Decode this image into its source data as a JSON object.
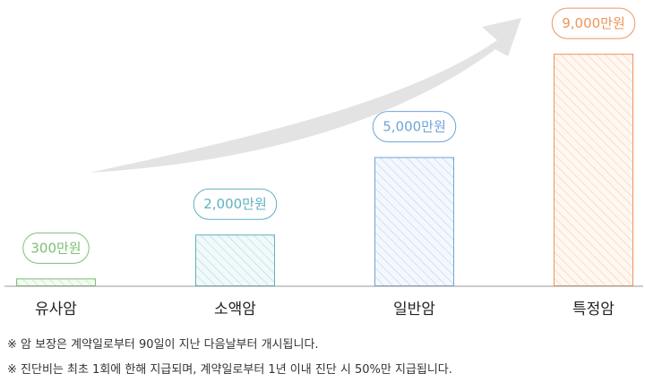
{
  "chart_data": {
    "type": "bar",
    "categories": [
      "유사암",
      "소액암",
      "일반암",
      "특정암"
    ],
    "values": [
      300,
      2000,
      5000,
      9000
    ],
    "value_labels": [
      "300만원",
      "2,000만원",
      "5,000만원",
      "9,000만원"
    ],
    "ylim": [
      0,
      9800
    ],
    "colors": [
      "#7cc173",
      "#5fb1c0",
      "#6ea4d7",
      "#f0955a"
    ],
    "arrow_color": "#e3e3e3",
    "grid": false
  },
  "notes": [
    "※ 암 보장은 계약일로부터 90일이 지난 다음날부터 개시됩니다.",
    "※ 진단비는 최초 1회에 한해 지급되며, 계약일로부터 1년 이내 진단 시 50%만 지급됩니다."
  ]
}
